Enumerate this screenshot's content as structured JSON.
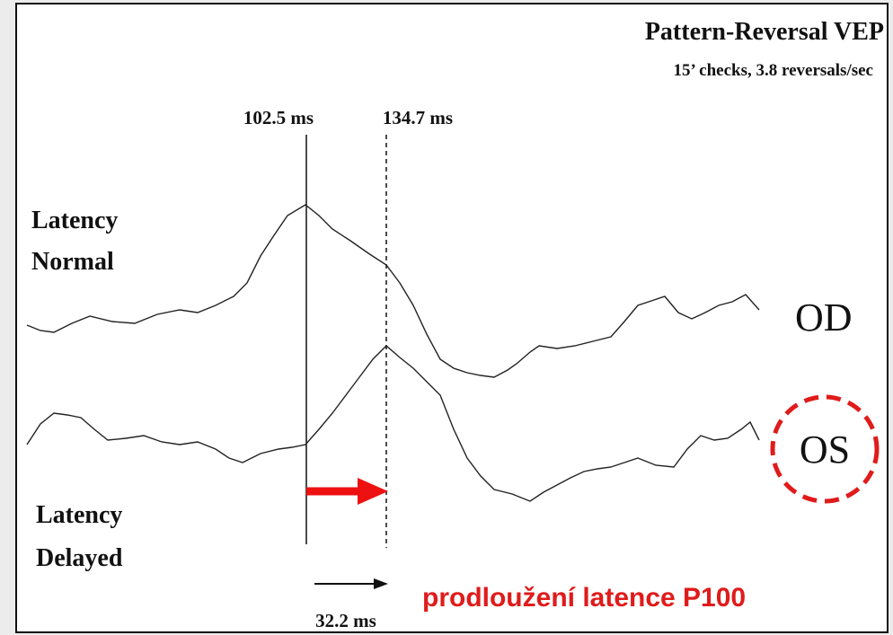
{
  "header": {
    "title": "Pattern-Reversal VEP",
    "subtitle": "15’ checks, 3.8 reversals/sec"
  },
  "markers": [
    "102.5 ms",
    "134.7 ms"
  ],
  "labels": {
    "normal": [
      "Latency",
      "Normal"
    ],
    "delayed": [
      "Latency",
      "Delayed"
    ]
  },
  "traces": [
    "OD",
    "OS"
  ],
  "difference": "32.2 ms",
  "annotation": "prodloužení latence P100"
}
